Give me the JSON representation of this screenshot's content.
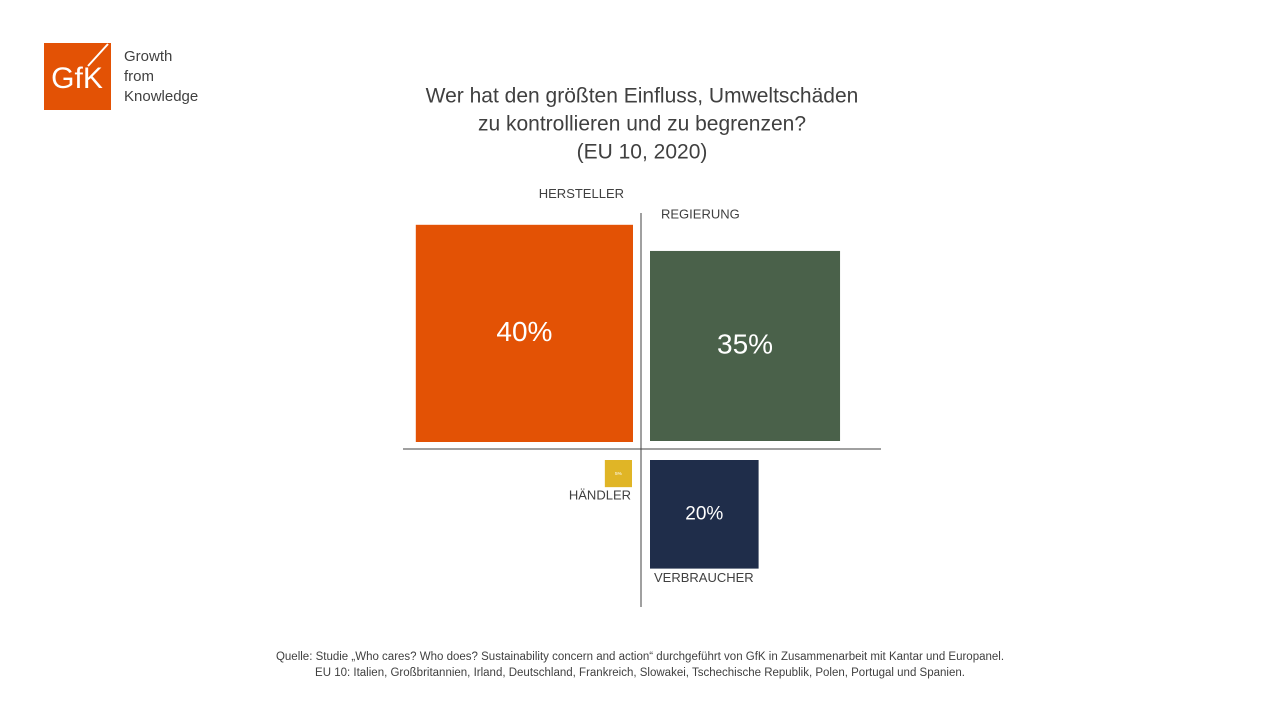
{
  "logo": {
    "mark": "GfK",
    "tagline": [
      "Growth",
      "from",
      "Knowledge"
    ]
  },
  "chart_data": {
    "type": "quadrant_squares",
    "title": [
      "Wer hat den größten Einfluss, Umweltschäden",
      "zu kontrollieren und zu begrenzen?"
    ],
    "subtitle": "(EU 10, 2020)",
    "categories": [
      "HERSTELLER",
      "REGIERUNG",
      "HÄNDLER",
      "VERBRAUCHER"
    ],
    "values": [
      40,
      35,
      5,
      20
    ],
    "value_labels": [
      "40%",
      "35%",
      "5%",
      "20%"
    ],
    "colors": [
      "#e35205",
      "#4a614a",
      "#e0b526",
      "#1f2d4a"
    ]
  },
  "source": [
    "Quelle: Studie „Who cares? Who does? Sustainability concern and action“ durchgeführt von GfK in Zusammenarbeit mit Kantar und Europanel.",
    "EU 10: Italien, Großbritannien, Irland, Deutschland, Frankreich, Slowakei, Tschechische Republik, Polen, Portugal und Spanien."
  ]
}
